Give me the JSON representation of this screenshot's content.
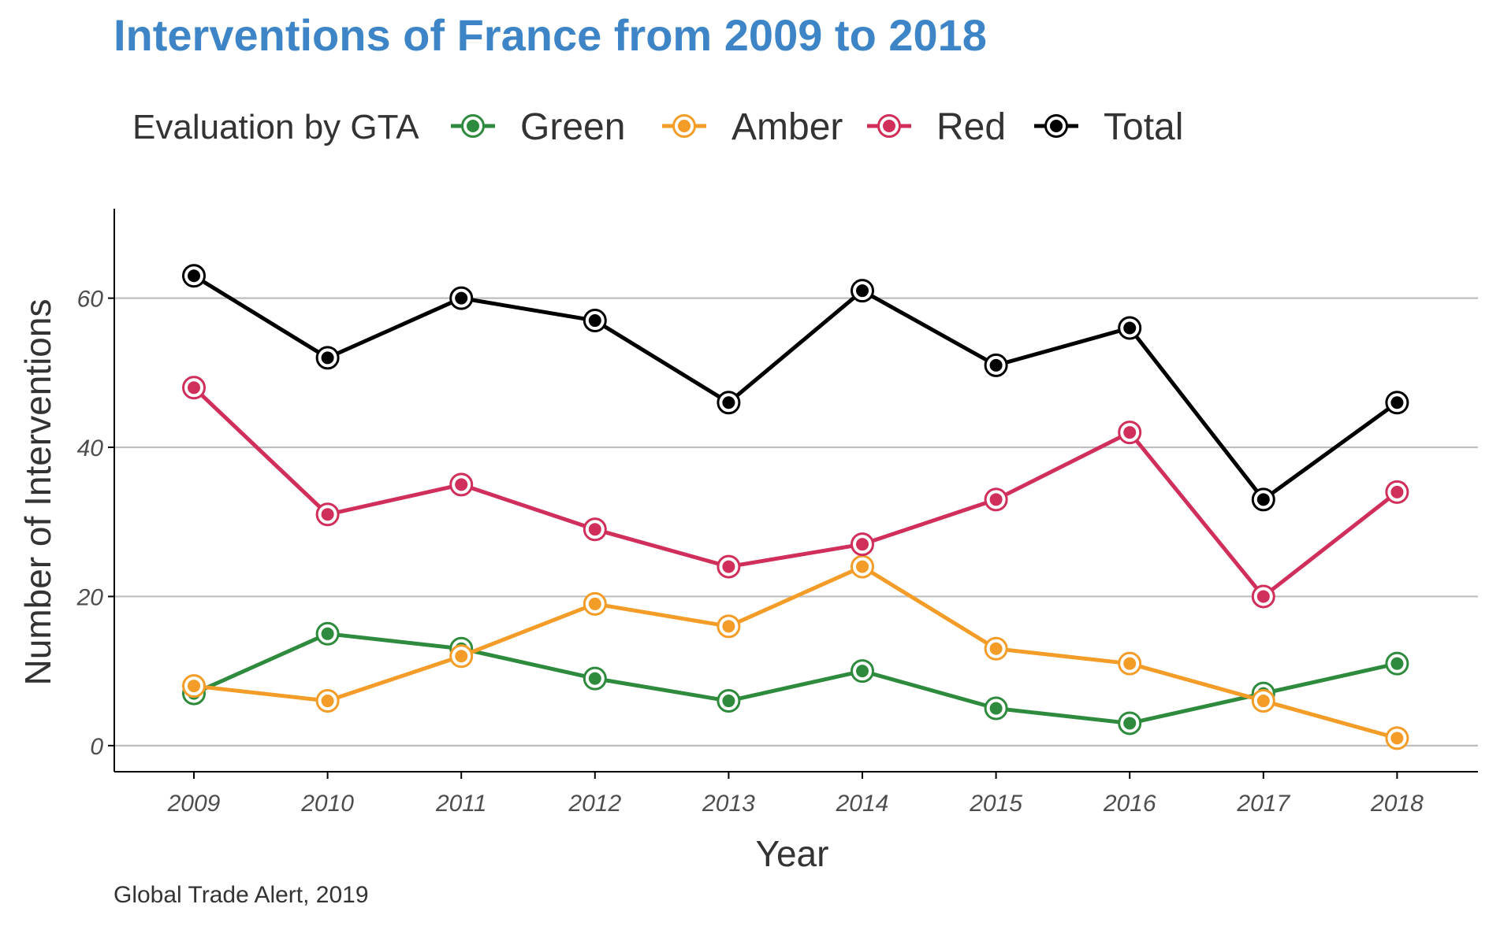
{
  "colors": {
    "title": "#3d85c6",
    "grid": "#bebebe",
    "axis": "#000000"
  },
  "chart_data": {
    "type": "line",
    "title": "Interventions of France from 2009 to 2018",
    "legend_title": "Evaluation by GTA",
    "legend_position": "top",
    "xlabel": "Year",
    "ylabel": "Number of Interventions",
    "caption": "Global Trade Alert, 2019",
    "x": [
      "2009",
      "2010",
      "2011",
      "2012",
      "2013",
      "2014",
      "2015",
      "2016",
      "2017",
      "2018"
    ],
    "yticks": [
      0,
      20,
      40,
      60
    ],
    "ylim": [
      -3.5,
      72
    ],
    "grid": "horizontal",
    "series": [
      {
        "name": "Green",
        "color": "#2e8b3d",
        "values": [
          7,
          15,
          13,
          9,
          6,
          10,
          5,
          3,
          7,
          11
        ]
      },
      {
        "name": "Amber",
        "color": "#f39c27",
        "values": [
          8,
          6,
          12,
          19,
          16,
          24,
          13,
          11,
          6,
          1
        ]
      },
      {
        "name": "Red",
        "color": "#d12f5b",
        "values": [
          48,
          31,
          35,
          29,
          24,
          27,
          33,
          42,
          20,
          34
        ]
      },
      {
        "name": "Total",
        "color": "#000000",
        "values": [
          63,
          52,
          60,
          57,
          46,
          61,
          51,
          56,
          33,
          46
        ]
      }
    ]
  }
}
